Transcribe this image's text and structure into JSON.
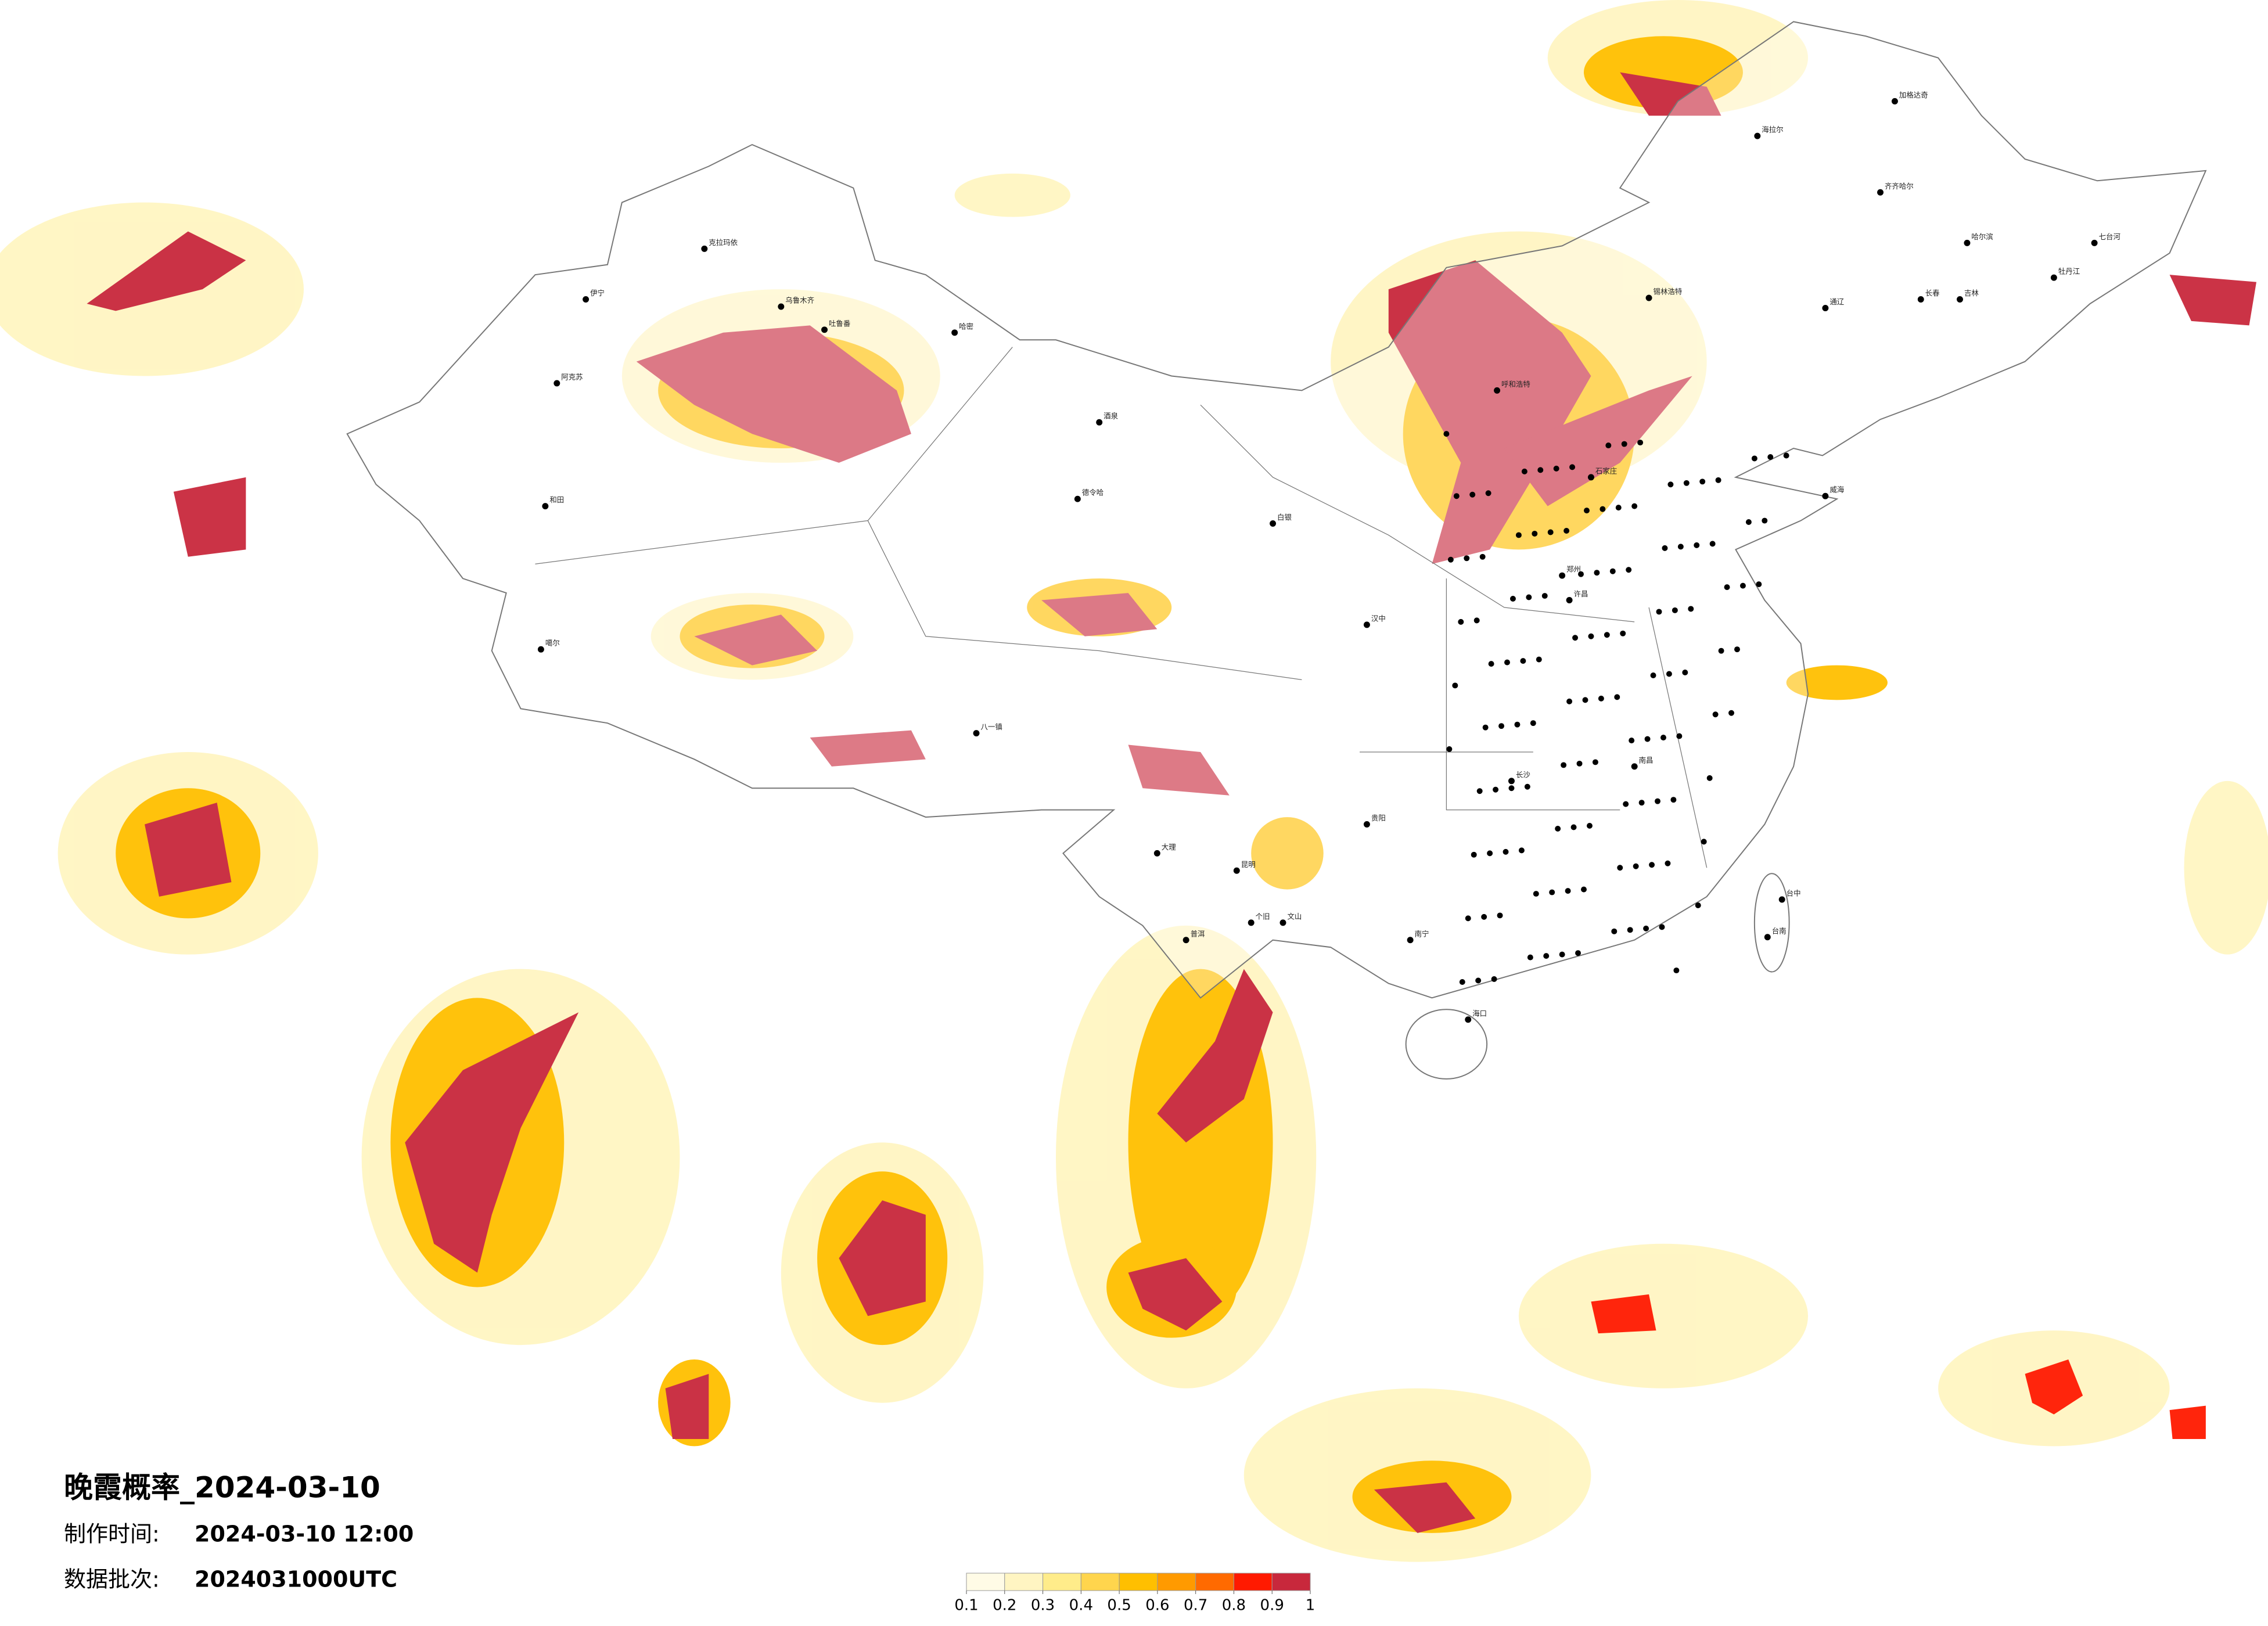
{
  "header": {
    "title": "晚霞概率_2024-03-10",
    "made_label": "制作时间:",
    "made_value": "2024-03-10 12:00",
    "batch_label": "数据批次:",
    "batch_value": "2024031000UTC"
  },
  "colorbar": {
    "colors": [
      "#fffbe6",
      "#fff5c2",
      "#ffec8a",
      "#ffd54d",
      "#ffbf00",
      "#ff9a00",
      "#ff6a00",
      "#ff1a00",
      "#c8283c"
    ],
    "ticks": [
      0.1,
      0.2,
      0.3,
      0.4,
      0.5,
      0.6,
      0.7,
      0.8,
      0.9,
      1
    ]
  },
  "cities": [
    "克拉玛依",
    "伊宁",
    "乌鲁木齐",
    "吐鲁番",
    "哈密",
    "阿克苏",
    "和田",
    "德令哈",
    "噶尔",
    "八一镇",
    "呼和浩特",
    "锡林浩特",
    "海拉尔",
    "加格达奇",
    "齐齐哈尔",
    "哈尔滨",
    "长春",
    "吉林",
    "石家庄",
    "白银",
    "郑州",
    "许昌",
    "威海",
    "长沙",
    "南昌",
    "台中",
    "台南",
    "贵阳",
    "昆明",
    "个旧",
    "南宁",
    "海口",
    "大理",
    "普洱",
    "文山",
    "汉中",
    "牡丹江",
    "七台河",
    "通辽",
    "酒泉"
  ]
}
